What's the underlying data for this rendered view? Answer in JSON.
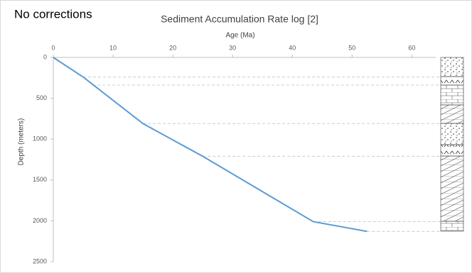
{
  "chart_data": {
    "type": "line",
    "annotation": "No corrections",
    "title": "Sediment Accumulation Rate log [2]",
    "xlabel": "Age (Ma)",
    "ylabel": "Depth (meters)",
    "x": [
      0,
      5,
      15,
      25,
      43.5,
      52.5
    ],
    "values": [
      0,
      240,
      810,
      1210,
      2010,
      2130
    ],
    "color": "#5b9bd5",
    "xlim": [
      0,
      64
    ],
    "xticks": [
      0,
      10,
      20,
      30,
      40,
      50,
      60
    ],
    "ylim": [
      0,
      2500
    ],
    "yticks": [
      0,
      500,
      1000,
      1500,
      2000,
      2500
    ],
    "y_inverted": true,
    "x_axis_position": "top",
    "grid": false
  }
}
